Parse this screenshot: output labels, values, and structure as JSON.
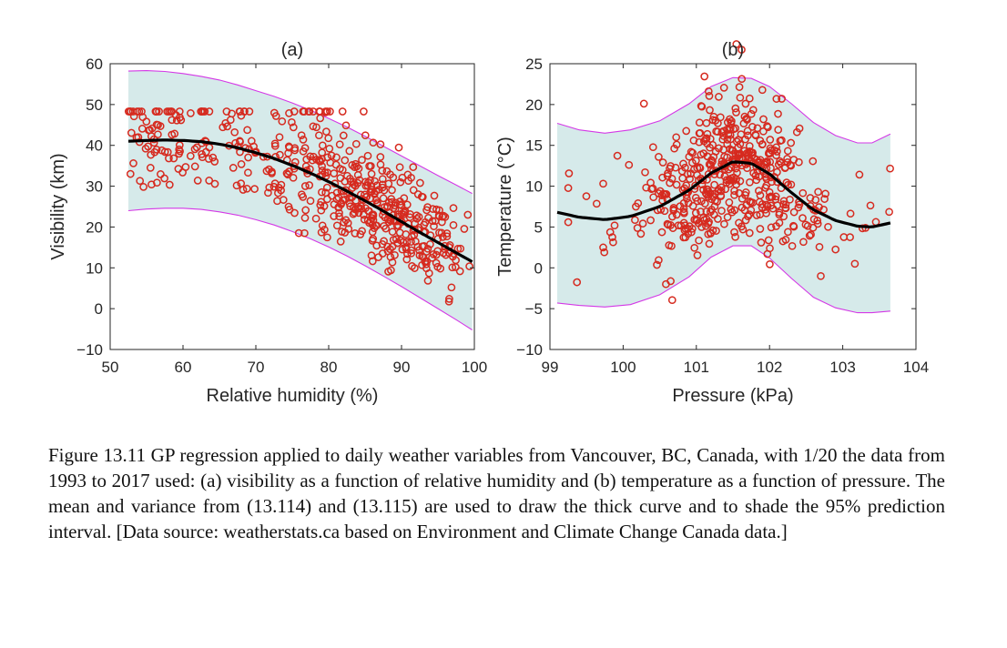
{
  "chart_data": [
    {
      "type": "scatter",
      "title": "(a)",
      "xlabel": "Relative humidity (%)",
      "ylabel": "Visibility (km)",
      "xlim": [
        50,
        100
      ],
      "ylim": [
        -10,
        60
      ],
      "xticks": [
        "50",
        "60",
        "70",
        "80",
        "90",
        "100"
      ],
      "yticks": [
        "−10",
        "0",
        "10",
        "20",
        "30",
        "40",
        "50",
        "60"
      ],
      "grid": false,
      "mean_curve": {
        "x": [
          52.5,
          55,
          57.5,
          60,
          62.5,
          65,
          67.5,
          70,
          72.5,
          75,
          77.5,
          80,
          82.5,
          85,
          87.5,
          90,
          92.5,
          95,
          97.5,
          99.7
        ],
        "y": [
          41,
          41.2,
          41.3,
          41.2,
          40.9,
          40.3,
          39.4,
          38.2,
          36.8,
          35.1,
          33.2,
          31.1,
          28.8,
          26.4,
          23.9,
          21.3,
          18.7,
          16.2,
          13.7,
          11.5
        ]
      },
      "band_upper": {
        "x": [
          52.5,
          55,
          57.5,
          60,
          62.5,
          65,
          67.5,
          70,
          72.5,
          75,
          77.5,
          80,
          82.5,
          85,
          87.5,
          90,
          92.5,
          95,
          97.5,
          99.7
        ],
        "y": [
          58.2,
          58.3,
          58.1,
          57.6,
          56.9,
          56,
          54.8,
          53.4,
          52,
          50.4,
          48.6,
          46.6,
          44.5,
          42.2,
          39.8,
          37.4,
          35,
          32.6,
          30.3,
          28.2
        ]
      },
      "band_lower": {
        "x": [
          52.5,
          55,
          57.5,
          60,
          62.5,
          65,
          67.5,
          70,
          72.5,
          75,
          77.5,
          80,
          82.5,
          85,
          87.5,
          90,
          92.5,
          95,
          97.5,
          99.7
        ],
        "y": [
          24,
          24.4,
          24.6,
          24.6,
          24.3,
          23.7,
          22.9,
          21.8,
          20.5,
          18.9,
          17.1,
          15.1,
          12.9,
          10.5,
          8,
          5.4,
          2.7,
          0,
          -2.7,
          -5.2
        ]
      },
      "scatter_seed": 7,
      "scatter_count": 560,
      "scatter_spread": 6.5,
      "plateau_value": 48.3,
      "colors": {
        "marker": "#d62a1f",
        "band_fill": "#d6eaea",
        "band_edge": "#d438e6",
        "mean_line": "#000000"
      }
    },
    {
      "type": "scatter",
      "title": "(b)",
      "xlabel": "Pressure (kPa)",
      "ylabel": "Temperature (°C)",
      "xlim": [
        99,
        104
      ],
      "ylim": [
        -10,
        25
      ],
      "xticks": [
        "99",
        "100",
        "101",
        "102",
        "103",
        "104"
      ],
      "yticks": [
        "−10",
        "−5",
        "0",
        "5",
        "10",
        "15",
        "20",
        "25"
      ],
      "grid": false,
      "mean_curve": {
        "x": [
          99.1,
          99.4,
          99.75,
          100.1,
          100.5,
          100.9,
          101.2,
          101.5,
          101.75,
          102,
          102.3,
          102.6,
          102.9,
          103.2,
          103.4,
          103.65
        ],
        "y": [
          6.8,
          6.2,
          5.9,
          6.3,
          7.5,
          9.5,
          11.6,
          13,
          12.8,
          11.5,
          9.2,
          7.1,
          5.8,
          5.1,
          5,
          5.5
        ]
      },
      "band_upper": {
        "x": [
          99.1,
          99.4,
          99.75,
          100.1,
          100.5,
          100.9,
          101.2,
          101.5,
          101.75,
          102,
          102.3,
          102.6,
          102.9,
          103.2,
          103.4,
          103.65
        ],
        "y": [
          17.7,
          16.9,
          16.5,
          16.9,
          18,
          20.1,
          22.2,
          23.3,
          23.2,
          22.2,
          20.1,
          17.8,
          16.2,
          15.3,
          15.3,
          16.4
        ]
      },
      "band_lower": {
        "x": [
          99.1,
          99.4,
          99.75,
          100.1,
          100.5,
          100.9,
          101.2,
          101.5,
          101.75,
          102,
          102.3,
          102.6,
          102.9,
          103.2,
          103.4,
          103.65
        ],
        "y": [
          -4.3,
          -4.6,
          -4.8,
          -4.5,
          -3.3,
          -1.1,
          1.3,
          2.7,
          2.7,
          1.2,
          -1.3,
          -3.6,
          -4.9,
          -5.5,
          -5.5,
          -5.3
        ]
      },
      "scatter_seed": 21,
      "scatter_count": 520,
      "scatter_spread": 4.4,
      "colors": {
        "marker": "#d62a1f",
        "band_fill": "#d6eaea",
        "band_edge": "#d438e6",
        "mean_line": "#000000"
      }
    }
  ],
  "caption": {
    "line1": "Figure 13.11  GP regression applied to daily weather variables from Vancouver,",
    "line2": "BC, Canada, with 1/20 the data from 1993 to 2017 used: (a) visibility as a",
    "line3": "function of relative humidity and (b) temperature as a function of pressure.",
    "line4": "The mean and variance from (13.114) and (13.115) are used to draw the thick",
    "line5": "curve and to shade the 95% prediction interval. [Data source: weatherstats.ca",
    "line6": "based on Environment and Climate Change Canada data.]"
  }
}
